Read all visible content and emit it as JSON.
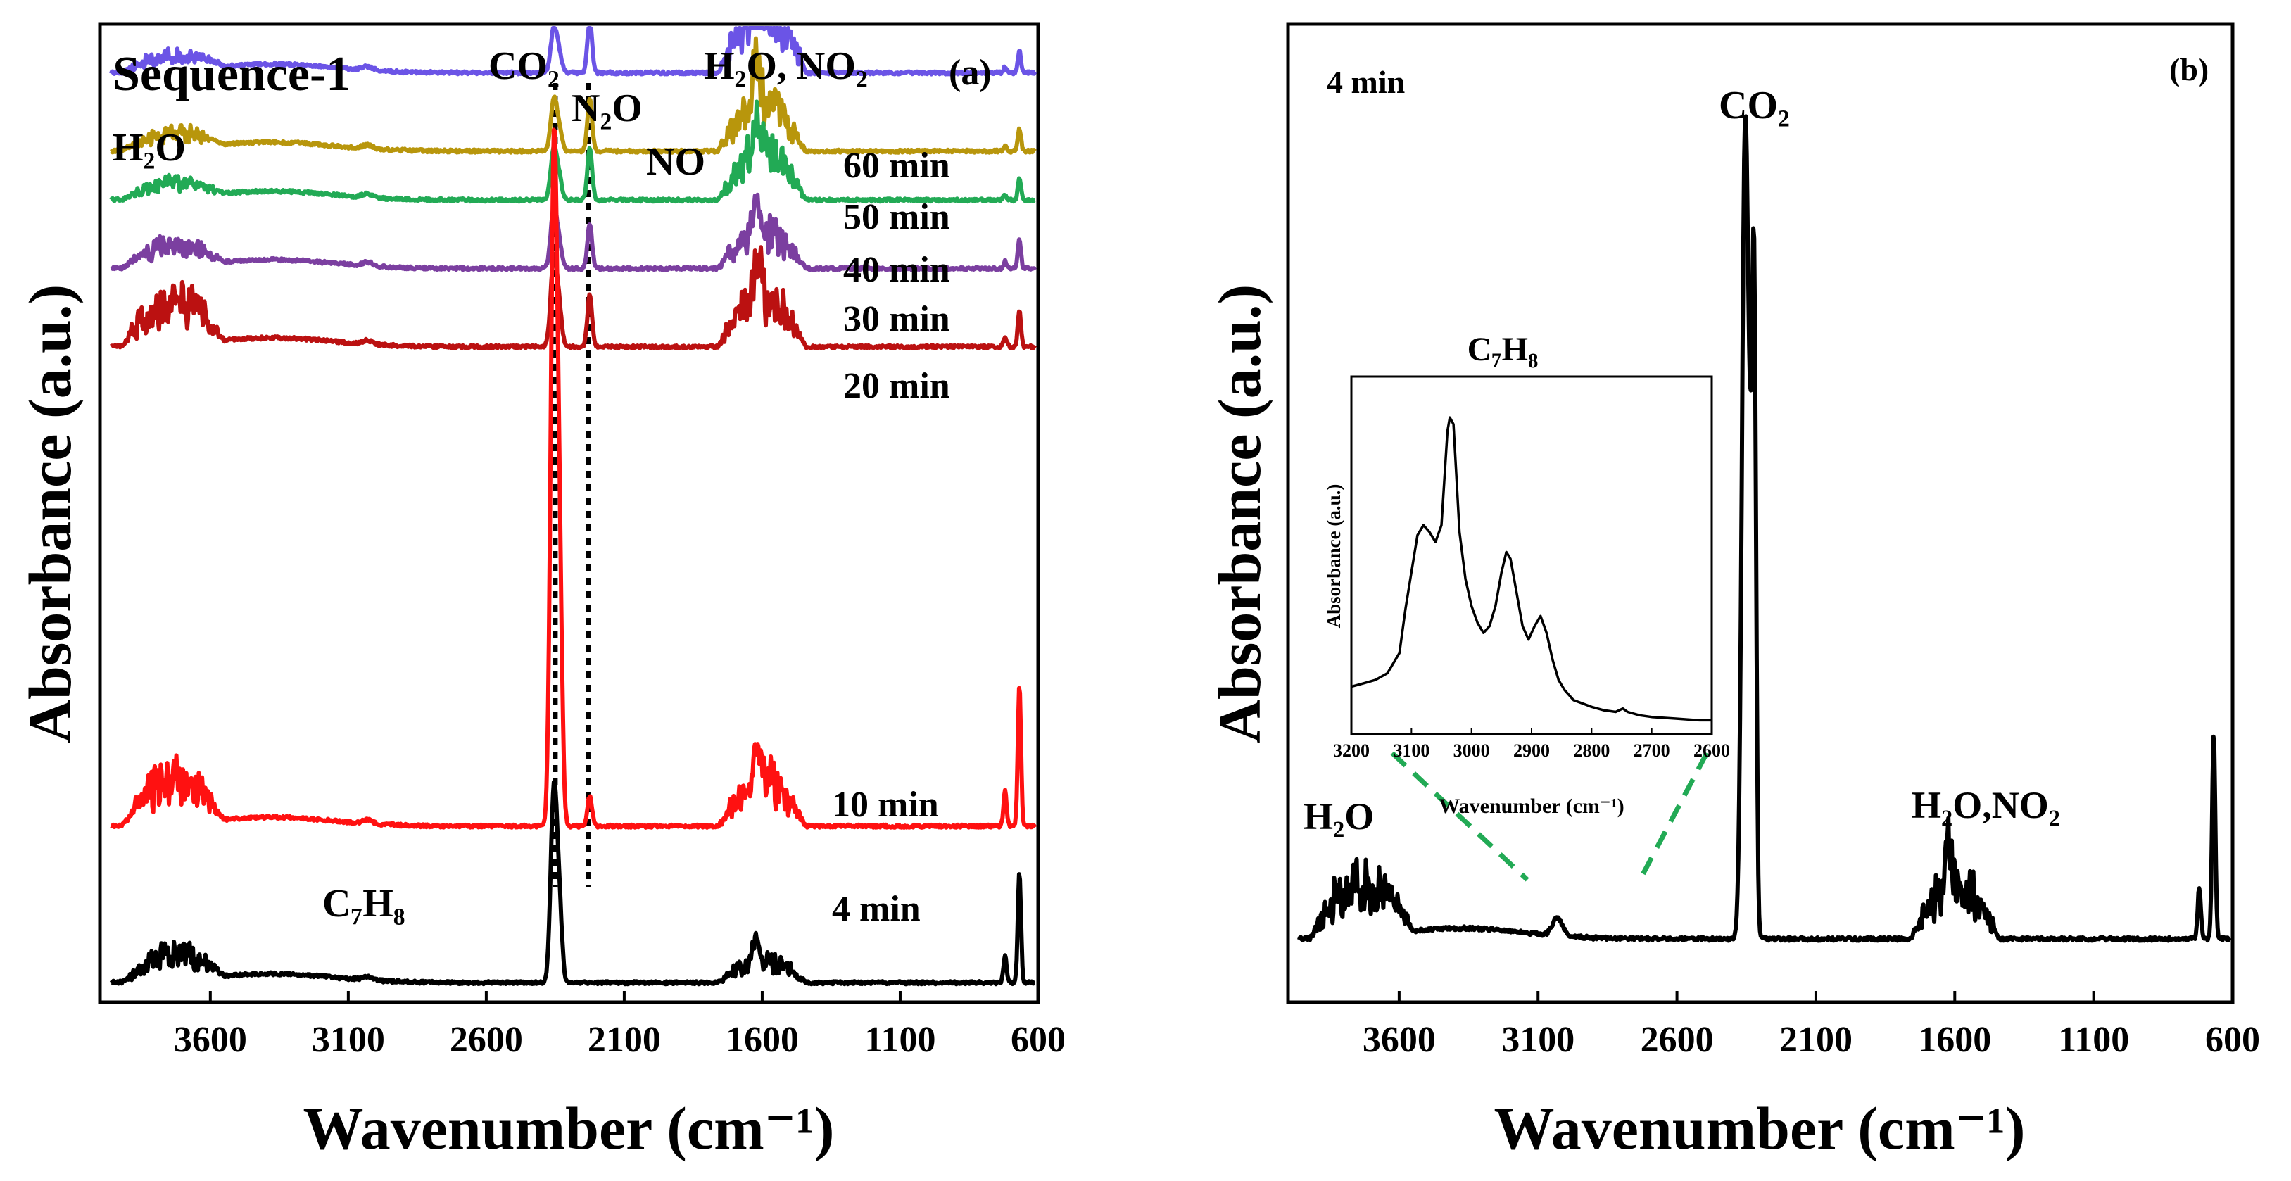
{
  "chart_data": [
    {
      "type": "line",
      "panel_tag": "(a)",
      "title": "Sequence-1",
      "xlabel": "Wavenumber (cm⁻¹)",
      "ylabel": "Absorbance (a.u.)",
      "xlim": [
        4000,
        600
      ],
      "x_ticks": [
        "3600",
        "3100",
        "2600",
        "2100",
        "1600",
        "1100",
        "600"
      ],
      "reference_lines": [
        2350,
        2230
      ],
      "peak_labels": [
        {
          "text": "CO₂",
          "x": 2350
        },
        {
          "text": "N₂O",
          "x": 2230
        },
        {
          "text": "H₂O, NO₂",
          "x": 1600
        },
        {
          "text": "NO",
          "x": 1880
        },
        {
          "text": "H₂O",
          "x": 3700
        },
        {
          "text": "C₇H₈",
          "x": 3010
        }
      ],
      "series": [
        {
          "name": "60 min",
          "color": "#6b54e6",
          "offset": 0.05,
          "co2": 0.06,
          "n2o": 0.07,
          "h2o_bend": 0.17,
          "h2o_stretch": 0.03,
          "low": 0.03
        },
        {
          "name": "50 min",
          "color": "#b8960c",
          "offset": 0.13,
          "co2": 0.07,
          "n2o": 0.07,
          "h2o_bend": 0.13,
          "h2o_stretch": 0.03,
          "low": 0.03
        },
        {
          "name": "40 min",
          "color": "#22aa55",
          "offset": 0.18,
          "co2": 0.07,
          "n2o": 0.07,
          "h2o_bend": 0.12,
          "h2o_stretch": 0.03,
          "low": 0.03
        },
        {
          "name": "30 min",
          "color": "#7b3fa0",
          "offset": 0.25,
          "co2": 0.08,
          "n2o": 0.06,
          "h2o_bend": 0.1,
          "h2o_stretch": 0.04,
          "low": 0.04
        },
        {
          "name": "20 min",
          "color": "#bb1111",
          "offset": 0.33,
          "co2": 0.12,
          "n2o": 0.07,
          "h2o_bend": 0.13,
          "h2o_stretch": 0.09,
          "low": 0.05
        },
        {
          "name": "10 min",
          "color": "#ff1111",
          "offset": 0.82,
          "co2": 0.9,
          "n2o": 0.04,
          "h2o_bend": 0.12,
          "h2o_stretch": 0.09,
          "low": 0.19
        },
        {
          "name": "4 min",
          "color": "#000000",
          "offset": 0.98,
          "co2": 0.26,
          "n2o": 0.0,
          "h2o_bend": 0.06,
          "h2o_stretch": 0.05,
          "low": 0.15
        }
      ]
    },
    {
      "type": "line",
      "panel_tag": "(b)",
      "title": "4 min",
      "xlabel": "Wavenumber (cm⁻¹)",
      "ylabel": "Absorbance (a.u.)",
      "xlim": [
        4000,
        600
      ],
      "x_ticks": [
        "3600",
        "3100",
        "2600",
        "2100",
        "1600",
        "1100",
        "600"
      ],
      "peak_labels": [
        {
          "text": "CO₂",
          "x": 2350
        },
        {
          "text": "H₂O",
          "x": 3850
        },
        {
          "text": "H₂O,NO₂",
          "x": 1550
        }
      ],
      "series": [
        {
          "name": "4 min",
          "color": "#000000",
          "co2": 0.88,
          "co2_shoulder": 0.64,
          "h2o_bend": 0.12,
          "h2o_stretch": 0.09,
          "low": 0.23,
          "ch": 0.02
        }
      ],
      "inset": {
        "title": "C₇H₈",
        "xlabel": "Wavenumber (cm⁻¹)",
        "ylabel": "Absorbance (a.u.)",
        "xlim": [
          3200,
          2600
        ],
        "x_ticks": [
          "3200",
          "3100",
          "3000",
          "2900",
          "2800",
          "2700",
          "2600"
        ],
        "x": [
          3200,
          3180,
          3160,
          3140,
          3120,
          3110,
          3100,
          3090,
          3080,
          3070,
          3060,
          3050,
          3040,
          3036,
          3030,
          3020,
          3010,
          3000,
          2990,
          2980,
          2970,
          2960,
          2950,
          2942,
          2935,
          2925,
          2915,
          2905,
          2895,
          2885,
          2875,
          2865,
          2855,
          2845,
          2830,
          2815,
          2800,
          2780,
          2760,
          2748,
          2740,
          2720,
          2700,
          2660,
          2620,
          2600
        ],
        "y": [
          0.12,
          0.13,
          0.14,
          0.16,
          0.22,
          0.35,
          0.46,
          0.57,
          0.6,
          0.58,
          0.55,
          0.6,
          0.88,
          0.92,
          0.9,
          0.58,
          0.44,
          0.36,
          0.31,
          0.28,
          0.3,
          0.36,
          0.46,
          0.52,
          0.5,
          0.4,
          0.3,
          0.26,
          0.3,
          0.33,
          0.28,
          0.2,
          0.14,
          0.11,
          0.08,
          0.07,
          0.06,
          0.05,
          0.045,
          0.055,
          0.045,
          0.035,
          0.03,
          0.025,
          0.02,
          0.02
        ]
      }
    }
  ]
}
